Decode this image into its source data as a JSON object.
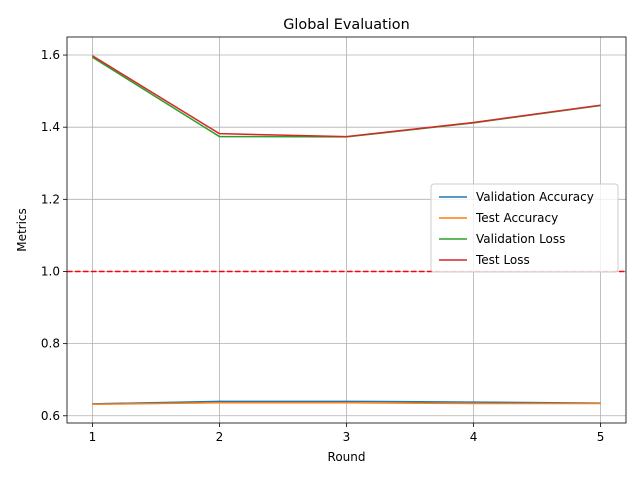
{
  "chart_data": {
    "type": "line",
    "title": "Global Evaluation",
    "xlabel": "Round",
    "ylabel": "Metrics",
    "x": [
      1,
      2,
      3,
      4,
      5
    ],
    "xticks": [
      "1",
      "2",
      "3",
      "4",
      "5"
    ],
    "yticks": [
      "0.6",
      "0.8",
      "1.0",
      "1.2",
      "1.4",
      "1.6"
    ],
    "xlim": [
      0.8,
      5.2
    ],
    "ylim": [
      0.58,
      1.65
    ],
    "grid": true,
    "legend_position": "center-right",
    "series": [
      {
        "name": "Validation Accuracy",
        "color": "#1f77b4",
        "values": [
          0.633,
          0.64,
          0.64,
          0.638,
          0.635
        ]
      },
      {
        "name": "Test Accuracy",
        "color": "#ff7f0e",
        "values": [
          0.632,
          0.636,
          0.636,
          0.634,
          0.634
        ]
      },
      {
        "name": "Validation Loss",
        "color": "#2ca02c",
        "values": [
          1.594,
          1.374,
          1.373,
          1.412,
          1.46
        ]
      },
      {
        "name": "Test Loss",
        "color": "#d62728",
        "values": [
          1.598,
          1.382,
          1.374,
          1.413,
          1.461
        ]
      }
    ],
    "reference_line": {
      "y": 1.0,
      "color": "#ff0000",
      "style": "dashed"
    }
  }
}
